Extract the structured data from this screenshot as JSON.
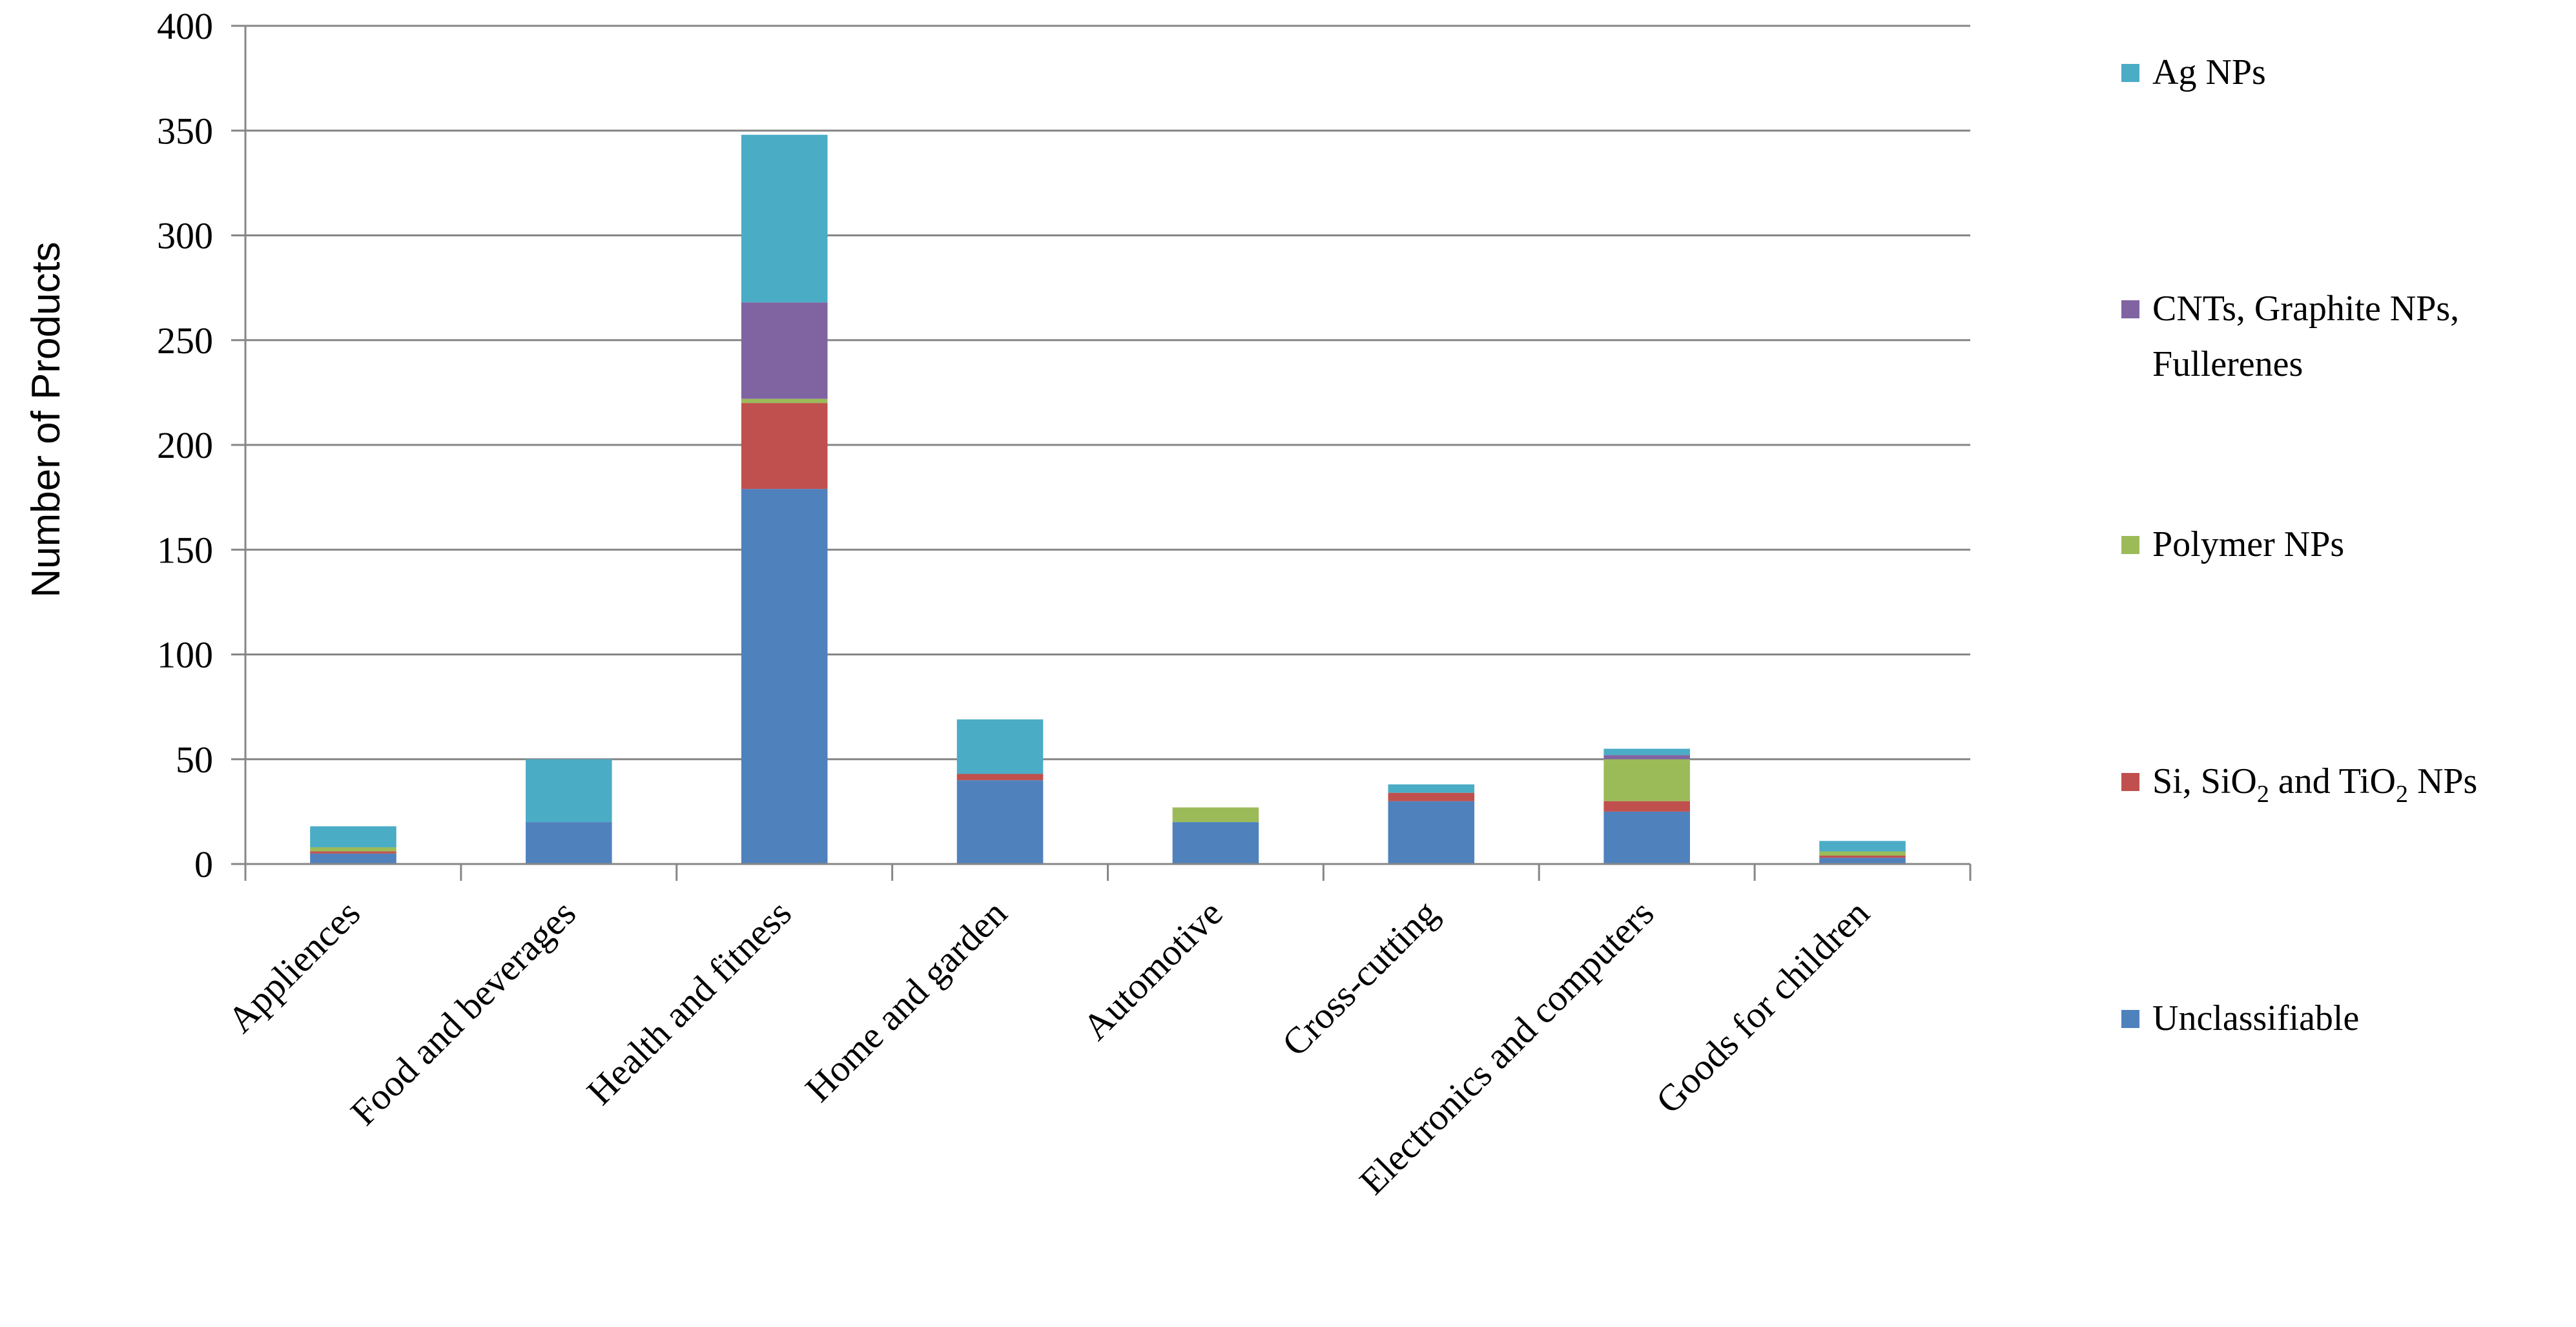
{
  "chart_data": {
    "type": "bar",
    "stacked": true,
    "title": "",
    "xlabel": "",
    "ylabel": "Number of Products",
    "ylim": [
      0,
      400
    ],
    "yticks": [
      0,
      50,
      100,
      150,
      200,
      250,
      300,
      350,
      400
    ],
    "grid": true,
    "legend_position": "right",
    "categories": [
      "Appliences",
      "Food and beverages",
      "Health and fitness",
      "Home and garden",
      "Automotive",
      "Cross-cutting",
      "Electronics and computers",
      "Goods for children"
    ],
    "series": [
      {
        "name": "Unclassifiable",
        "color": "#4F81BD",
        "values": [
          5,
          20,
          179,
          40,
          20,
          30,
          25,
          3
        ]
      },
      {
        "name": "Si, SiO2 and TiO2 NPs",
        "color": "#C0504D",
        "values": [
          1,
          0,
          41,
          3,
          0,
          4,
          5,
          1
        ]
      },
      {
        "name": "Polymer NPs",
        "color": "#9BBB59",
        "values": [
          2,
          0,
          2,
          0,
          7,
          0,
          20,
          2
        ]
      },
      {
        "name": "CNTs, Graphite NPs, Fullerenes",
        "color": "#8064A2",
        "values": [
          0,
          0,
          46,
          0,
          0,
          0,
          2,
          0
        ]
      },
      {
        "name": "Ag NPs",
        "color": "#4BACC6",
        "values": [
          10,
          30,
          80,
          26,
          0,
          4,
          3,
          5
        ]
      }
    ]
  },
  "legend": {
    "ag": "Ag NPs",
    "cnt_line1": "CNTs, Graphite NPs,",
    "cnt_line2": "Fullerenes",
    "polymer": "Polymer NPs",
    "si_a": "Si, SiO",
    "si_sub1": "2",
    "si_b": " and TiO",
    "si_sub2": "2",
    "si_c": " NPs",
    "unclassifiable": "Unclassifiable"
  }
}
